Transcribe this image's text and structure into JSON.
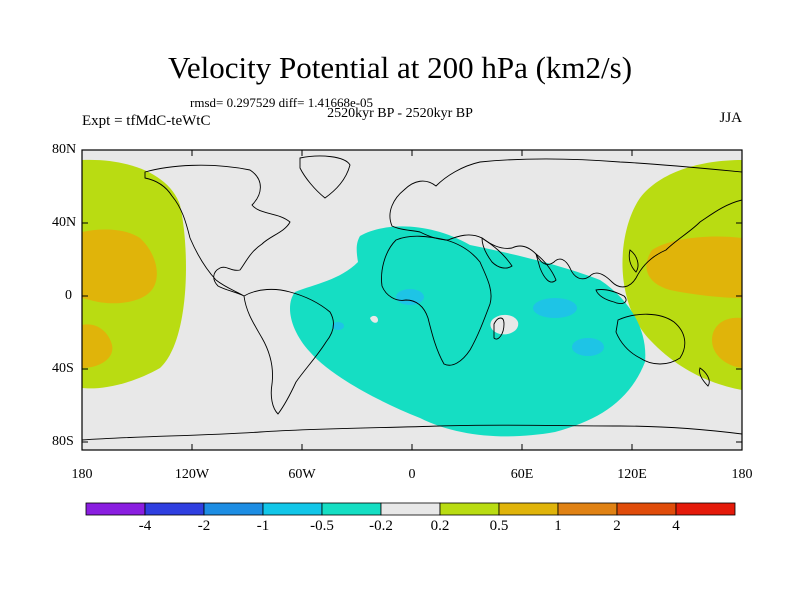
{
  "title": "Velocity Potential at 200 hPa (km2/s)",
  "stats": "rmsd= 0.297529 diff= 1.41668e-05",
  "period": "2520kyr BP - 2520kyr BP",
  "experiment": "Expt = tfMdC-teWtC",
  "season": "JJA",
  "lat_labels": [
    "80N",
    "40N",
    "0",
    "40S",
    "80S"
  ],
  "lon_labels": [
    "180",
    "120W",
    "60W",
    "0",
    "60E",
    "120E",
    "180"
  ],
  "colorbar": {
    "levels": [
      "-4",
      "-2",
      "-1",
      "-0.5",
      "-0.2",
      "0.2",
      "0.5",
      "1",
      "2",
      "4"
    ],
    "colors": [
      "#8a1ee0",
      "#2f3fe0",
      "#1d8de3",
      "#12c6e8",
      "#15dec3",
      "#e8e8e8",
      "#b9dc12",
      "#e0b40a",
      "#e08214",
      "#e04c0a",
      "#e41a0a"
    ]
  },
  "fill_colors": {
    "neutral": "#e8e8e8",
    "neg_02_05": "#15dec3",
    "neg_05_1": "#1ec4e6",
    "pos_02_05": "#b9dc12",
    "pos_05_1": "#e0b40a"
  }
}
